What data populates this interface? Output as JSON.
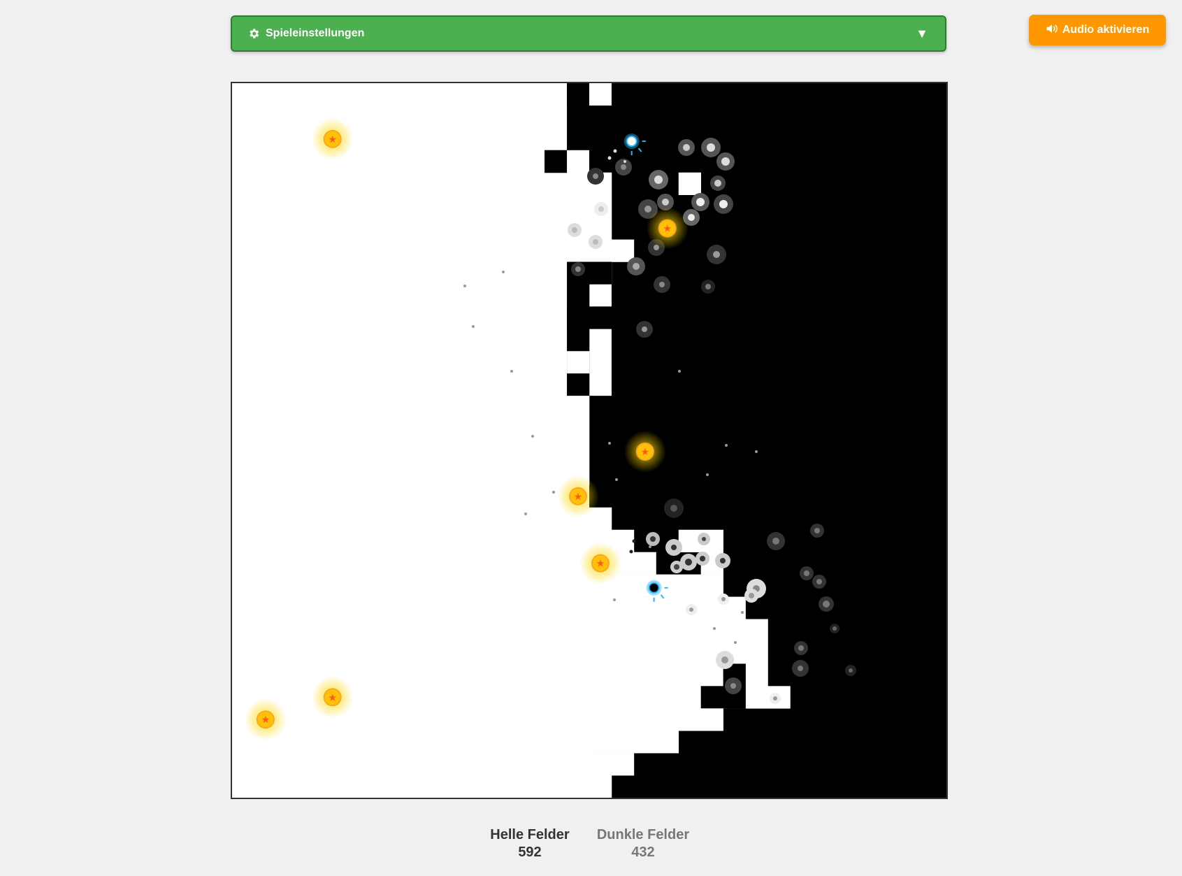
{
  "settings": {
    "label": "Spieleinstellungen",
    "icon": "gear-icon",
    "expand_icon": "chevron-down-icon",
    "expanded": false
  },
  "audio": {
    "label": "Audio aktivieren",
    "icon": "speaker-icon",
    "color": "#ff9800"
  },
  "scores": {
    "light_label": "Helle Felder",
    "light_value": "592",
    "dark_label": "Dunkle Felder",
    "dark_value": "432"
  },
  "board": {
    "cols": 32,
    "rows": 32,
    "light_color": "#ffffff",
    "dark_color": "#000000",
    "dark_cells_per_row": [
      [
        15,
        17
      ],
      [
        16,
        32
      ],
      [
        16,
        32
      ],
      [
        14,
        15
      ],
      [
        17,
        32
      ],
      [
        17,
        32
      ],
      [
        17,
        32
      ],
      [
        17,
        32
      ],
      [
        17,
        32
      ],
      [
        17,
        32
      ],
      [
        17,
        32
      ],
      [
        17,
        32
      ],
      [
        17,
        32
      ],
      [
        17,
        32
      ],
      [
        16,
        32
      ],
      [
        16,
        32
      ],
      [
        16,
        32
      ],
      [
        16,
        32
      ],
      [
        16,
        32
      ],
      [
        16,
        32
      ],
      [
        16,
        32
      ],
      [
        16,
        32
      ],
      [
        16,
        32
      ],
      [
        16,
        32
      ],
      [
        16,
        32
      ],
      [
        16,
        32
      ],
      [
        16,
        32
      ],
      [
        16,
        32
      ],
      [
        16,
        32
      ],
      [
        16,
        32
      ],
      [
        16,
        32
      ],
      [
        16,
        32
      ]
    ],
    "balls": [
      {
        "name": "light-ball",
        "col": 17.9,
        "row": 2.6,
        "color": "#29b6f6"
      },
      {
        "name": "dark-ball",
        "col": 18.9,
        "row": 22.6,
        "color": "#29b6f6"
      }
    ],
    "powerups": [
      {
        "col": 4.5,
        "row": 2.5
      },
      {
        "col": 19.5,
        "row": 6.5
      },
      {
        "col": 18.5,
        "row": 16.5
      },
      {
        "col": 15.5,
        "row": 18.5
      },
      {
        "col": 16.5,
        "row": 21.5
      },
      {
        "col": 4.5,
        "row": 27.5
      },
      {
        "col": 1.5,
        "row": 28.5
      }
    ]
  }
}
